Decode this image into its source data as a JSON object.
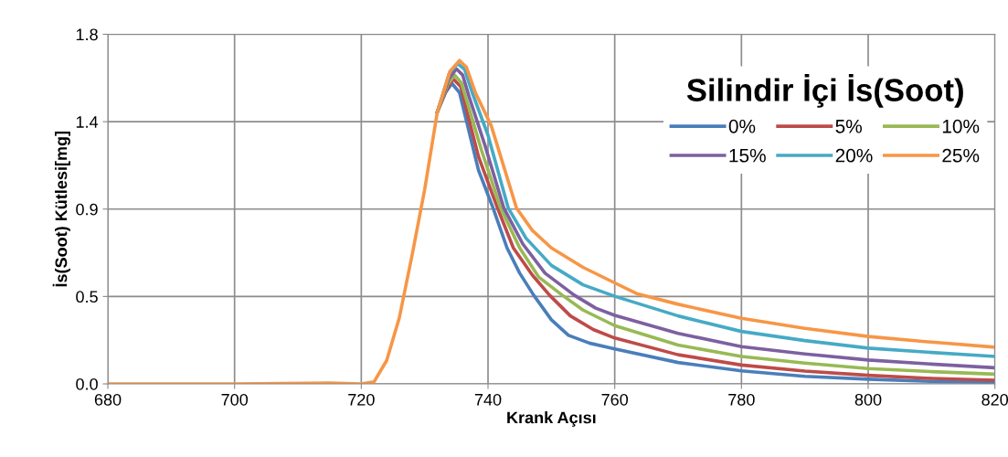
{
  "chart_data": {
    "type": "line",
    "xlabel": "Krank Açısı",
    "ylabel": "İs(Soot) Kütlesi[mg]",
    "legend_title": "Silindir İçi İs(Soot)",
    "xlim": [
      680,
      820
    ],
    "xticks": [
      680,
      700,
      720,
      740,
      760,
      780,
      800,
      820
    ],
    "ylim": [
      0,
      1.8
    ],
    "yticks": [
      {
        "value": 0,
        "label": "0.0"
      },
      {
        "value": 0.45,
        "label": "0.5"
      },
      {
        "value": 0.9,
        "label": "0.9"
      },
      {
        "value": 1.35,
        "label": "1.4"
      },
      {
        "value": 1.8,
        "label": "1.8"
      }
    ],
    "grid": true,
    "legend": "top right",
    "marker": "none",
    "line_style": "solid",
    "series": [
      {
        "name": "0%",
        "color": "#4a7ebb",
        "x": [
          732,
          733.3,
          734.3,
          735.5,
          737,
          738.5,
          740.8,
          743,
          745,
          747.2,
          750,
          752.7,
          756,
          760,
          770,
          780,
          790,
          800,
          810,
          820
        ],
        "values": [
          1.4,
          1.5,
          1.547,
          1.5,
          1.3,
          1.1,
          0.905,
          0.7,
          0.57,
          0.457,
          0.33,
          0.25,
          0.21,
          0.18,
          0.11,
          0.067,
          0.039,
          0.024,
          0.013,
          0.008
        ]
      },
      {
        "name": "5%",
        "color": "#be4b48",
        "x": [
          732,
          733.5,
          734.5,
          735.7,
          737,
          738.5,
          741.5,
          744,
          747,
          749.7,
          753,
          756.6,
          760,
          770,
          780,
          790,
          800,
          810,
          820
        ],
        "values": [
          1.4,
          1.52,
          1.571,
          1.53,
          1.36,
          1.17,
          0.905,
          0.7,
          0.56,
          0.457,
          0.35,
          0.28,
          0.236,
          0.15,
          0.097,
          0.066,
          0.044,
          0.028,
          0.019
        ]
      },
      {
        "name": "10%",
        "color": "#98b954",
        "x": [
          732,
          733.6,
          734.7,
          735.8,
          737,
          739,
          742,
          745,
          748,
          751.7,
          755,
          760,
          770,
          780,
          790,
          800,
          810,
          820
        ],
        "values": [
          1.4,
          1.54,
          1.591,
          1.55,
          1.42,
          1.2,
          0.905,
          0.7,
          0.55,
          0.457,
          0.38,
          0.3,
          0.2,
          0.141,
          0.107,
          0.079,
          0.063,
          0.05
        ]
      },
      {
        "name": "15%",
        "color": "#7d60a0",
        "x": [
          732,
          733.8,
          735,
          736,
          737,
          739.5,
          742.5,
          745.5,
          749,
          753.6,
          757,
          760,
          770,
          780,
          790,
          800,
          810,
          820
        ],
        "values": [
          1.4,
          1.57,
          1.622,
          1.59,
          1.48,
          1.23,
          0.905,
          0.72,
          0.57,
          0.457,
          0.39,
          0.353,
          0.26,
          0.192,
          0.154,
          0.123,
          0.102,
          0.083
        ]
      },
      {
        "name": "20%",
        "color": "#46aac5",
        "x": [
          732,
          733.9,
          735.2,
          736.3,
          737.5,
          740,
          743.2,
          746,
          750,
          755,
          760.1,
          770,
          780,
          790,
          800,
          810,
          820
        ],
        "values": [
          1.4,
          1.6,
          1.649,
          1.62,
          1.5,
          1.28,
          0.905,
          0.75,
          0.61,
          0.51,
          0.45,
          0.35,
          0.27,
          0.223,
          0.184,
          0.162,
          0.141
        ]
      },
      {
        "name": "25%",
        "color": "#f79646",
        "x": [
          680,
          700,
          715,
          720,
          722,
          724,
          726,
          728,
          730,
          732,
          734,
          735.5,
          736.6,
          738,
          740.5,
          744.5,
          747,
          750,
          755,
          760,
          763.6,
          770,
          780,
          790,
          800,
          810,
          820
        ],
        "values": [
          0,
          0,
          0.005,
          0,
          0.01,
          0.12,
          0.34,
          0.66,
          1.0,
          1.4,
          1.61,
          1.665,
          1.63,
          1.5,
          1.33,
          0.905,
          0.79,
          0.7,
          0.6,
          0.52,
          0.463,
          0.41,
          0.338,
          0.286,
          0.244,
          0.215,
          0.189
        ]
      }
    ]
  }
}
